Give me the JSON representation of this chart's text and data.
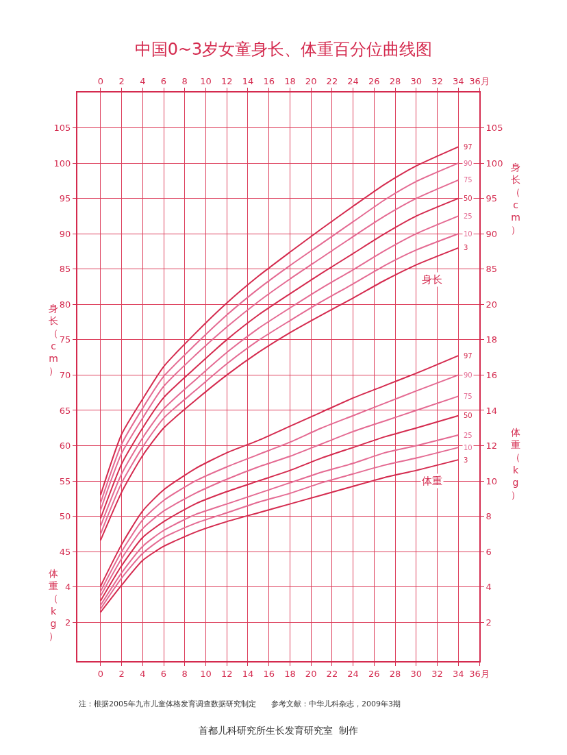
{
  "chart_data": [
    {
      "type": "line",
      "title": "中国0~3岁女童身长、体重百分位曲线图",
      "ylabel": "身长（cm）",
      "y2label": "身长（cm）",
      "x": [
        0,
        2,
        4,
        6,
        9,
        12,
        15,
        18,
        21,
        24,
        27,
        30,
        34
      ],
      "series": [
        {
          "name": "97",
          "color": "#d42a4e",
          "values": [
            53.0,
            61.6,
            66.6,
            71.2,
            75.9,
            80.2,
            84.0,
            87.4,
            90.7,
            93.9,
            97.0,
            99.6,
            102.3
          ]
        },
        {
          "name": "90",
          "color": "#e46a92",
          "values": [
            51.9,
            60.2,
            65.3,
            69.8,
            74.3,
            78.5,
            82.2,
            85.5,
            88.6,
            91.7,
            94.8,
            97.4,
            100.0
          ]
        },
        {
          "name": "75",
          "color": "#e46a92",
          "values": [
            50.9,
            58.9,
            63.9,
            68.4,
            72.8,
            76.8,
            80.4,
            83.6,
            86.6,
            89.6,
            92.5,
            95.0,
            97.6
          ]
        },
        {
          "name": "50",
          "color": "#d42a4e",
          "values": [
            49.7,
            57.4,
            62.5,
            66.8,
            71.0,
            75.0,
            78.5,
            81.5,
            84.4,
            87.2,
            90.0,
            92.5,
            95.0
          ]
        },
        {
          "name": "25",
          "color": "#e46a92",
          "values": [
            48.6,
            56.0,
            61.1,
            65.2,
            69.3,
            73.2,
            76.6,
            79.5,
            82.3,
            84.9,
            87.6,
            90.0,
            92.5
          ]
        },
        {
          "name": "10",
          "color": "#e46a92",
          "values": [
            47.5,
            54.7,
            59.8,
            63.9,
            67.8,
            71.6,
            74.9,
            77.7,
            80.4,
            82.9,
            85.5,
            87.7,
            90.0
          ]
        },
        {
          "name": "3",
          "color": "#d42a4e",
          "values": [
            46.6,
            53.4,
            58.6,
            62.5,
            66.4,
            70.0,
            73.2,
            76.0,
            78.5,
            80.9,
            83.4,
            85.6,
            88.0
          ]
        }
      ],
      "xlim": [
        -2.2,
        36
      ],
      "x2lim": [
        -2.2,
        36
      ],
      "x2ticks": [
        0,
        2,
        4,
        6,
        8,
        10,
        12,
        14,
        16,
        18,
        20,
        22,
        24,
        26,
        28,
        30,
        32,
        34,
        {
          "value": 36,
          "label": "36月"
        }
      ],
      "ylim": [
        29.5,
        110
      ],
      "yticks": [
        45,
        50,
        55,
        60,
        65,
        70,
        75,
        80,
        85,
        90,
        95,
        100,
        105
      ],
      "y2lim": [
        29.5,
        110
      ],
      "y2ticks": [
        85,
        90,
        95,
        100,
        105
      ],
      "tick_labels": "y",
      "grid": true,
      "marker": "none",
      "line_style": "solid",
      "annotations": [
        {
          "text": "身长",
          "x": 31.5,
          "y": 83.5
        }
      ]
    },
    {
      "type": "line",
      "ylabel": "体重（kg）",
      "y2label": "体重（kg）",
      "x": [
        0,
        2,
        4,
        6,
        9,
        12,
        15,
        18,
        21,
        24,
        27,
        30,
        34
      ],
      "series": [
        {
          "name": "97",
          "color": "#d42a4e",
          "values": [
            4.04,
            6.4,
            8.3,
            9.5,
            10.7,
            11.6,
            12.3,
            13.1,
            13.9,
            14.7,
            15.4,
            16.1,
            17.1
          ]
        },
        {
          "name": "90",
          "color": "#e46a92",
          "values": [
            3.75,
            6.0,
            7.8,
            8.9,
            10.0,
            10.8,
            11.5,
            12.2,
            13.0,
            13.7,
            14.4,
            15.1,
            16.0
          ]
        },
        {
          "name": "75",
          "color": "#e46a92",
          "values": [
            3.49,
            5.6,
            7.3,
            8.3,
            9.3,
            10.1,
            10.8,
            11.4,
            12.1,
            12.8,
            13.4,
            14.0,
            14.8
          ]
        },
        {
          "name": "50",
          "color": "#d42a4e",
          "values": [
            3.21,
            5.2,
            6.8,
            7.7,
            8.7,
            9.4,
            10.0,
            10.6,
            11.3,
            11.9,
            12.5,
            13.0,
            13.7
          ]
        },
        {
          "name": "25",
          "color": "#e46a92",
          "values": [
            2.96,
            4.8,
            6.3,
            7.2,
            8.1,
            8.7,
            9.3,
            9.9,
            10.5,
            11.0,
            11.6,
            12.0,
            12.6
          ]
        },
        {
          "name": "10",
          "color": "#e46a92",
          "values": [
            2.76,
            4.5,
            5.9,
            6.8,
            7.6,
            8.2,
            8.8,
            9.3,
            9.9,
            10.4,
            10.9,
            11.3,
            11.9
          ]
        },
        {
          "name": "3",
          "color": "#d42a4e",
          "values": [
            2.57,
            4.1,
            5.5,
            6.3,
            7.1,
            7.7,
            8.2,
            8.7,
            9.2,
            9.7,
            10.2,
            10.6,
            11.2
          ]
        }
      ],
      "xlim": [
        -2.2,
        36
      ],
      "xticks": [
        0,
        2,
        4,
        6,
        8,
        10,
        12,
        14,
        16,
        18,
        20,
        22,
        24,
        26,
        28,
        30,
        32,
        34,
        {
          "value": 36,
          "label": "36月"
        }
      ],
      "ylim": [
        -0.2,
        32
      ],
      "yticks": [
        2,
        4
      ],
      "y2lim": [
        -0.2,
        32
      ],
      "y2ticks": [
        2,
        4,
        6,
        8,
        10,
        12,
        14,
        16,
        18,
        20
      ],
      "grid": true,
      "marker": "none",
      "line_style": "solid",
      "annotations": [
        {
          "text": "体重",
          "x": 31.5,
          "y": 10.0
        },
        "注：根据2005年九市儿童体格发育调查数据研究制定　　参考文献：中华儿科杂志，2009年3期",
        "首都儿科研究所生长发育研究室  制作"
      ]
    }
  ]
}
